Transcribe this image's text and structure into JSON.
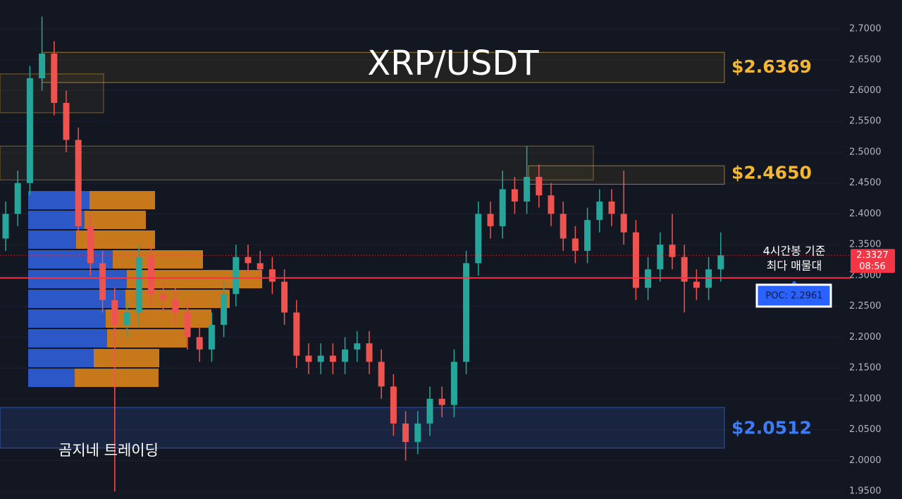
{
  "chart_data": {
    "type": "candlestick",
    "title": "XRP/USDT",
    "ylim": [
      1.9375,
      2.7469
    ],
    "yticks": [
      {
        "value": 1.95,
        "label": "1.9500"
      },
      {
        "value": 2.0,
        "label": "2.0000"
      },
      {
        "value": 2.05,
        "label": "2.0500"
      },
      {
        "value": 2.1,
        "label": "2.1000"
      },
      {
        "value": 2.15,
        "label": "2.1500"
      },
      {
        "value": 2.2,
        "label": "2.2000"
      },
      {
        "value": 2.25,
        "label": "2.2500"
      },
      {
        "value": 2.3,
        "label": "2.3000"
      },
      {
        "value": 2.35,
        "label": "2.3500"
      },
      {
        "value": 2.4,
        "label": "2.4000"
      },
      {
        "value": 2.45,
        "label": "2.4500"
      },
      {
        "value": 2.5,
        "label": "2.5000"
      },
      {
        "value": 2.55,
        "label": "2.5500"
      },
      {
        "value": 2.6,
        "label": "2.6000"
      },
      {
        "value": 2.65,
        "label": "2.6500"
      },
      {
        "value": 2.7,
        "label": "2.7000"
      }
    ],
    "grid": true,
    "up_color": "#26a69a",
    "down_color": "#ef5350",
    "candles": {
      "open": [
        2.36,
        2.4,
        2.45,
        2.62,
        2.66,
        2.58,
        2.52,
        2.38,
        2.32,
        2.26,
        2.22,
        2.24,
        2.33,
        2.27,
        2.26,
        2.24,
        2.2,
        2.18,
        2.22,
        2.27,
        2.33,
        2.32,
        2.31,
        2.29,
        2.24,
        2.17,
        2.16,
        2.17,
        2.16,
        2.18,
        2.19,
        2.16,
        2.12,
        2.06,
        2.03,
        2.06,
        2.1,
        2.09,
        2.16,
        2.32,
        2.4,
        2.38,
        2.44,
        2.42,
        2.46,
        2.43,
        2.4,
        2.36,
        2.34,
        2.39,
        2.42,
        2.4,
        2.37,
        2.28,
        2.31,
        2.35,
        2.33,
        2.29,
        2.28,
        2.31
      ],
      "high": [
        2.42,
        2.47,
        2.64,
        2.72,
        2.68,
        2.6,
        2.54,
        2.4,
        2.34,
        2.28,
        2.26,
        2.35,
        2.35,
        2.29,
        2.28,
        2.26,
        2.22,
        2.24,
        2.29,
        2.35,
        2.35,
        2.34,
        2.33,
        2.31,
        2.26,
        2.19,
        2.19,
        2.19,
        2.2,
        2.21,
        2.21,
        2.18,
        2.14,
        2.08,
        2.08,
        2.12,
        2.12,
        2.18,
        2.34,
        2.42,
        2.42,
        2.47,
        2.46,
        2.51,
        2.48,
        2.45,
        2.42,
        2.38,
        2.41,
        2.44,
        2.44,
        2.47,
        2.39,
        2.33,
        2.37,
        2.4,
        2.35,
        2.31,
        2.33,
        2.37
      ],
      "low": [
        2.34,
        2.38,
        2.43,
        2.6,
        2.56,
        2.5,
        2.36,
        2.3,
        2.24,
        1.95,
        2.2,
        2.22,
        2.25,
        2.24,
        2.22,
        2.18,
        2.16,
        2.16,
        2.2,
        2.25,
        2.3,
        2.29,
        2.27,
        2.22,
        2.15,
        2.14,
        2.14,
        2.14,
        2.14,
        2.16,
        2.14,
        2.1,
        2.04,
        2.0,
        2.01,
        2.04,
        2.07,
        2.07,
        2.14,
        2.3,
        2.36,
        2.36,
        2.4,
        2.4,
        2.41,
        2.38,
        2.34,
        2.32,
        2.32,
        2.37,
        2.38,
        2.35,
        2.26,
        2.26,
        2.29,
        2.31,
        2.24,
        2.26,
        2.26,
        2.29
      ],
      "close": [
        2.4,
        2.45,
        2.62,
        2.66,
        2.58,
        2.52,
        2.38,
        2.32,
        2.26,
        2.22,
        2.24,
        2.33,
        2.27,
        2.26,
        2.24,
        2.2,
        2.18,
        2.22,
        2.27,
        2.33,
        2.32,
        2.31,
        2.29,
        2.24,
        2.17,
        2.16,
        2.17,
        2.16,
        2.18,
        2.19,
        2.16,
        2.12,
        2.06,
        2.03,
        2.06,
        2.1,
        2.09,
        2.16,
        2.32,
        2.4,
        2.38,
        2.44,
        2.42,
        2.46,
        2.43,
        2.4,
        2.36,
        2.34,
        2.39,
        2.42,
        2.4,
        2.37,
        2.28,
        2.31,
        2.35,
        2.33,
        2.29,
        2.28,
        2.31,
        2.3327
      ]
    },
    "profile": {
      "bins": [
        2.4382,
        2.4062,
        2.3742,
        2.3422,
        2.3101,
        2.2781,
        2.2461,
        2.2141,
        2.1821,
        2.1501,
        2.1181
      ],
      "buy": [
        87,
        80,
        68,
        120,
        140,
        138,
        110,
        112,
        93,
        66
      ],
      "sell": [
        93,
        87,
        112,
        128,
        192,
        148,
        150,
        113,
        93,
        119
      ],
      "buy_color": "#2f5fd8",
      "sell_color": "#e68a1a",
      "xlim": [
        0,
        1240
      ]
    },
    "levels": [
      {
        "value": 2.6369,
        "label": "$2.6369",
        "zone": [
          2.662,
          2.613
        ],
        "color": "#f5b731"
      },
      {
        "value": 2.465,
        "label": "$2.4650",
        "zone": [
          2.478,
          2.448
        ],
        "color": "#f5b731"
      },
      {
        "value": 2.0512,
        "label": "$2.0512",
        "zone": [
          2.086,
          2.02
        ],
        "color": "#3d7cf5"
      }
    ],
    "zones": [
      [
        2.627,
        2.564
      ],
      [
        2.51,
        2.455
      ]
    ],
    "current_price": {
      "value": 2.3327,
      "label": "2.3327",
      "timer": "08:56",
      "color": "#f23645"
    },
    "poc": {
      "value": 2.2961,
      "label": "POC: 2.2961",
      "color": "#f23645"
    },
    "note": [
      "4시간봉 기준",
      "최다 매물대"
    ],
    "watermark": "곰지네 트레이딩"
  }
}
